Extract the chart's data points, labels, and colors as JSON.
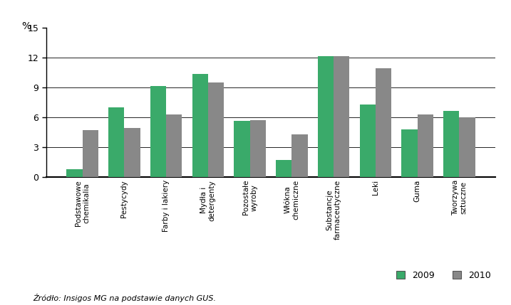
{
  "categories": [
    "Podstawowe\nchemikalia",
    "Pestycydy",
    "Farby i lakiery",
    "Mydła i\ndetergenty",
    "Pozostałe\nwyroby",
    "Włókna\nchemiczne",
    "Substancje\nfarmaceutyczne",
    "Leki",
    "Guma",
    "Tworzywa\nsztuczne"
  ],
  "values_2009": [
    0.8,
    7.0,
    9.1,
    10.3,
    5.6,
    1.7,
    12.1,
    7.3,
    4.8,
    6.6
  ],
  "values_2010": [
    4.7,
    4.9,
    6.3,
    9.5,
    5.7,
    4.3,
    12.1,
    10.9,
    6.3,
    6.0
  ],
  "color_2009": "#3aaa6a",
  "color_2010": "#888888",
  "ylabel": "%",
  "ylim": [
    0,
    15
  ],
  "yticks": [
    0,
    3,
    6,
    9,
    12,
    15
  ],
  "grid_ticks": [
    3,
    6,
    9,
    12
  ],
  "legend_2009": "2009",
  "legend_2010": "2010",
  "source_text": "Źródło: Insigos MG na podstawie danych GUS.",
  "bar_width": 0.38,
  "background_color": "#ffffff"
}
